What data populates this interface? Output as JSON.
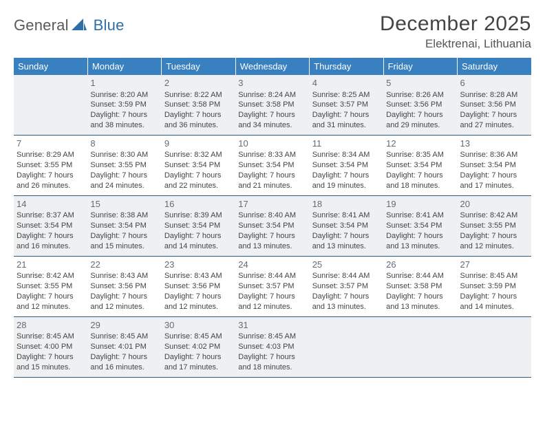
{
  "logo": {
    "general": "General",
    "blue": "Blue",
    "icon_color": "#2f6fa9"
  },
  "title": "December 2025",
  "location": "Elektrenai, Lithuania",
  "header_bg": "#3980c0",
  "row_border": "#2a5a88",
  "shaded_bg": "#eef0f2",
  "weekdays": [
    "Sunday",
    "Monday",
    "Tuesday",
    "Wednesday",
    "Thursday",
    "Friday",
    "Saturday"
  ],
  "weeks": [
    [
      null,
      {
        "n": "1",
        "sr": "8:20 AM",
        "ss": "3:59 PM",
        "dl": "Daylight: 7 hours and 38 minutes."
      },
      {
        "n": "2",
        "sr": "8:22 AM",
        "ss": "3:58 PM",
        "dl": "Daylight: 7 hours and 36 minutes."
      },
      {
        "n": "3",
        "sr": "8:24 AM",
        "ss": "3:58 PM",
        "dl": "Daylight: 7 hours and 34 minutes."
      },
      {
        "n": "4",
        "sr": "8:25 AM",
        "ss": "3:57 PM",
        "dl": "Daylight: 7 hours and 31 minutes."
      },
      {
        "n": "5",
        "sr": "8:26 AM",
        "ss": "3:56 PM",
        "dl": "Daylight: 7 hours and 29 minutes."
      },
      {
        "n": "6",
        "sr": "8:28 AM",
        "ss": "3:56 PM",
        "dl": "Daylight: 7 hours and 27 minutes."
      }
    ],
    [
      {
        "n": "7",
        "sr": "8:29 AM",
        "ss": "3:55 PM",
        "dl": "Daylight: 7 hours and 26 minutes."
      },
      {
        "n": "8",
        "sr": "8:30 AM",
        "ss": "3:55 PM",
        "dl": "Daylight: 7 hours and 24 minutes."
      },
      {
        "n": "9",
        "sr": "8:32 AM",
        "ss": "3:54 PM",
        "dl": "Daylight: 7 hours and 22 minutes."
      },
      {
        "n": "10",
        "sr": "8:33 AM",
        "ss": "3:54 PM",
        "dl": "Daylight: 7 hours and 21 minutes."
      },
      {
        "n": "11",
        "sr": "8:34 AM",
        "ss": "3:54 PM",
        "dl": "Daylight: 7 hours and 19 minutes."
      },
      {
        "n": "12",
        "sr": "8:35 AM",
        "ss": "3:54 PM",
        "dl": "Daylight: 7 hours and 18 minutes."
      },
      {
        "n": "13",
        "sr": "8:36 AM",
        "ss": "3:54 PM",
        "dl": "Daylight: 7 hours and 17 minutes."
      }
    ],
    [
      {
        "n": "14",
        "sr": "8:37 AM",
        "ss": "3:54 PM",
        "dl": "Daylight: 7 hours and 16 minutes."
      },
      {
        "n": "15",
        "sr": "8:38 AM",
        "ss": "3:54 PM",
        "dl": "Daylight: 7 hours and 15 minutes."
      },
      {
        "n": "16",
        "sr": "8:39 AM",
        "ss": "3:54 PM",
        "dl": "Daylight: 7 hours and 14 minutes."
      },
      {
        "n": "17",
        "sr": "8:40 AM",
        "ss": "3:54 PM",
        "dl": "Daylight: 7 hours and 13 minutes."
      },
      {
        "n": "18",
        "sr": "8:41 AM",
        "ss": "3:54 PM",
        "dl": "Daylight: 7 hours and 13 minutes."
      },
      {
        "n": "19",
        "sr": "8:41 AM",
        "ss": "3:54 PM",
        "dl": "Daylight: 7 hours and 13 minutes."
      },
      {
        "n": "20",
        "sr": "8:42 AM",
        "ss": "3:55 PM",
        "dl": "Daylight: 7 hours and 12 minutes."
      }
    ],
    [
      {
        "n": "21",
        "sr": "8:42 AM",
        "ss": "3:55 PM",
        "dl": "Daylight: 7 hours and 12 minutes."
      },
      {
        "n": "22",
        "sr": "8:43 AM",
        "ss": "3:56 PM",
        "dl": "Daylight: 7 hours and 12 minutes."
      },
      {
        "n": "23",
        "sr": "8:43 AM",
        "ss": "3:56 PM",
        "dl": "Daylight: 7 hours and 12 minutes."
      },
      {
        "n": "24",
        "sr": "8:44 AM",
        "ss": "3:57 PM",
        "dl": "Daylight: 7 hours and 12 minutes."
      },
      {
        "n": "25",
        "sr": "8:44 AM",
        "ss": "3:57 PM",
        "dl": "Daylight: 7 hours and 13 minutes."
      },
      {
        "n": "26",
        "sr": "8:44 AM",
        "ss": "3:58 PM",
        "dl": "Daylight: 7 hours and 13 minutes."
      },
      {
        "n": "27",
        "sr": "8:45 AM",
        "ss": "3:59 PM",
        "dl": "Daylight: 7 hours and 14 minutes."
      }
    ],
    [
      {
        "n": "28",
        "sr": "8:45 AM",
        "ss": "4:00 PM",
        "dl": "Daylight: 7 hours and 15 minutes."
      },
      {
        "n": "29",
        "sr": "8:45 AM",
        "ss": "4:01 PM",
        "dl": "Daylight: 7 hours and 16 minutes."
      },
      {
        "n": "30",
        "sr": "8:45 AM",
        "ss": "4:02 PM",
        "dl": "Daylight: 7 hours and 17 minutes."
      },
      {
        "n": "31",
        "sr": "8:45 AM",
        "ss": "4:03 PM",
        "dl": "Daylight: 7 hours and 18 minutes."
      },
      null,
      null,
      null
    ]
  ]
}
